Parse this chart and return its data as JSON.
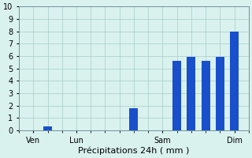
{
  "xlabel": "Précipitations 24h ( mm )",
  "background_color": "#d9f2ee",
  "bar_color": "#1a4fcc",
  "ylim": [
    0,
    10
  ],
  "yticks": [
    0,
    1,
    2,
    3,
    4,
    5,
    6,
    7,
    8,
    9,
    10
  ],
  "xtick_labels": [
    "Ven",
    "Lun",
    "Sam",
    "Dim"
  ],
  "xtick_positions": [
    1,
    4,
    10,
    15
  ],
  "xlim": [
    0,
    16
  ],
  "bars": [
    {
      "x": 2,
      "height": 0.3
    },
    {
      "x": 8,
      "height": 1.8
    },
    {
      "x": 11,
      "height": 5.6
    },
    {
      "x": 12,
      "height": 5.9
    },
    {
      "x": 13,
      "height": 5.6
    },
    {
      "x": 14,
      "height": 5.9
    },
    {
      "x": 15,
      "height": 8.0
    }
  ],
  "bar_width": 0.6,
  "grid_color": "#a8ccc8",
  "grid_linewidth": 0.5,
  "spine_color": "#7090a0",
  "tick_labelsize": 7,
  "xlabel_fontsize": 8
}
